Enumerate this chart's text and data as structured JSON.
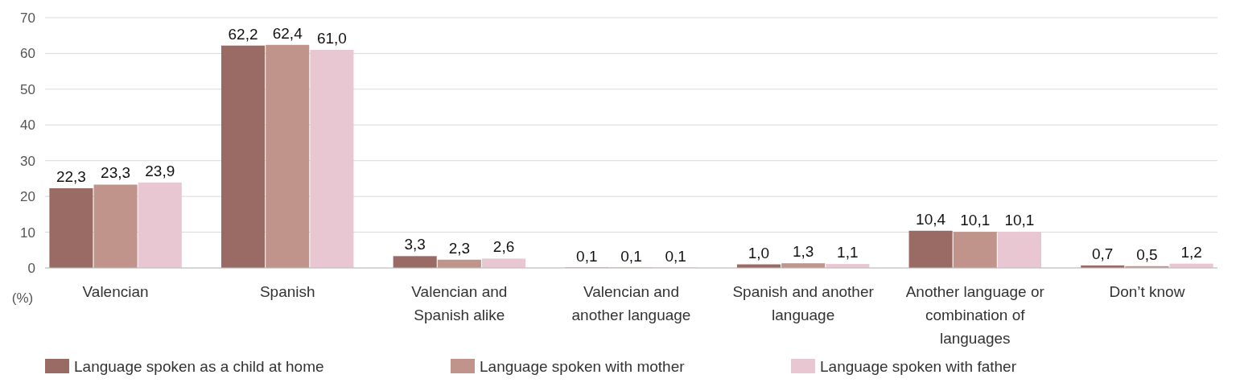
{
  "chart_data": {
    "type": "bar",
    "ylabel": "(%)",
    "categories": [
      "Valencian",
      "Spanish",
      "Valencian and Spanish alike",
      "Valencian and another language",
      "Spanish and another language",
      "Another language or combination of languages",
      "Don’t know"
    ],
    "series": [
      {
        "name": "Language spoken as a child at home",
        "color": "#9a6a64",
        "values": [
          22.3,
          62.2,
          3.3,
          0.1,
          1.0,
          10.4,
          0.7
        ],
        "value_labels": [
          "22,3",
          "62,2",
          "3,3",
          "0,1",
          "1,0",
          "10,4",
          "0,7"
        ]
      },
      {
        "name": "Language spoken with mother",
        "color": "#c0948a",
        "values": [
          23.3,
          62.4,
          2.3,
          0.1,
          1.3,
          10.1,
          0.5
        ],
        "value_labels": [
          "23,3",
          "62,4",
          "2,3",
          "0,1",
          "1,3",
          "10,1",
          "0,5"
        ]
      },
      {
        "name": "Language spoken with father",
        "color": "#e8c6d2",
        "values": [
          23.9,
          61.0,
          2.6,
          0.1,
          1.1,
          10.1,
          1.2
        ],
        "value_labels": [
          "23,9",
          "61,0",
          "2,6",
          "0,1",
          "1,1",
          "10,1",
          "1,2"
        ]
      }
    ],
    "ylim": [
      0,
      70
    ],
    "yticks": [
      0,
      10,
      20,
      30,
      40,
      50,
      60,
      70
    ],
    "grid": "y",
    "legend": "bottom"
  }
}
